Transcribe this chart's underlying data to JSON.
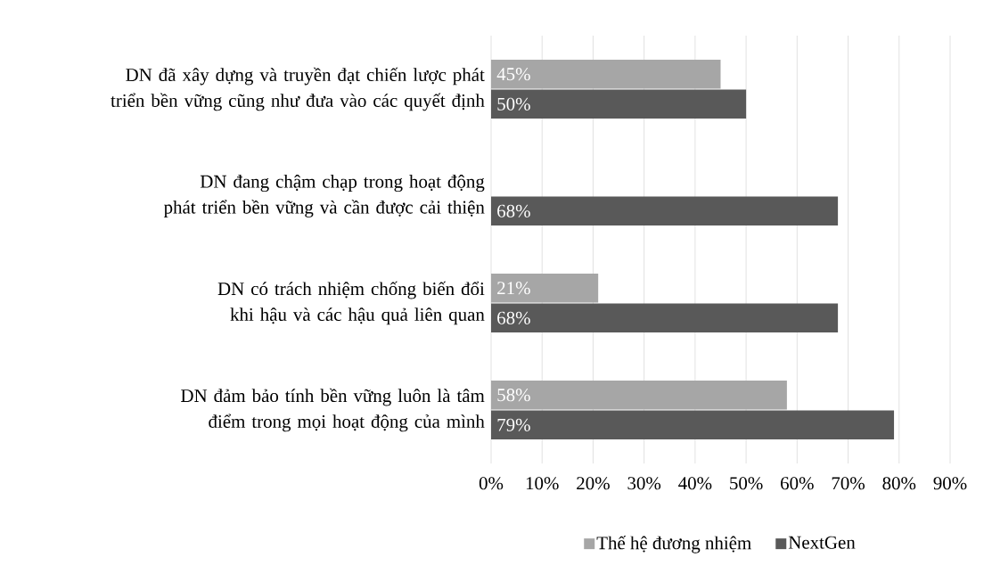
{
  "chart_data": {
    "type": "bar",
    "orientation": "horizontal",
    "categories": [
      "DN đã xây dựng và truyền đạt chiến lược phát triển bền vững cũng như đưa vào các quyết định",
      "DN đang chậm chạp trong hoạt động phát triển bền vững và cần được cải thiện",
      "DN có trách nhiệm chống biến đổi khi hậu và các hậu quả liên quan",
      "DN đảm bảo tính bền vững luôn là tâm điểm trong mọi hoạt động của mình"
    ],
    "series": [
      {
        "name": "Thế hệ đương nhiệm",
        "color": "#a6a6a6",
        "values": [
          45,
          null,
          21,
          58
        ],
        "value_labels": [
          "45%",
          null,
          "21%",
          "58%"
        ]
      },
      {
        "name": "NextGen",
        "color": "#595959",
        "values": [
          50,
          68,
          68,
          79
        ],
        "value_labels": [
          "50%",
          "68%",
          "68%",
          "79%"
        ]
      }
    ],
    "xlim": [
      0,
      90
    ],
    "xticks": [
      {
        "value": 0,
        "label": "0%"
      },
      {
        "value": 10,
        "label": "10%"
      },
      {
        "value": 20,
        "label": "20%"
      },
      {
        "value": 30,
        "label": "30%"
      },
      {
        "value": 40,
        "label": "40%"
      },
      {
        "value": 50,
        "label": "50%"
      },
      {
        "value": 60,
        "label": "60%"
      },
      {
        "value": 70,
        "label": "70%"
      },
      {
        "value": 80,
        "label": "80%"
      },
      {
        "value": 90,
        "label": "90%"
      }
    ],
    "grid": "x",
    "legend": "bottom"
  }
}
